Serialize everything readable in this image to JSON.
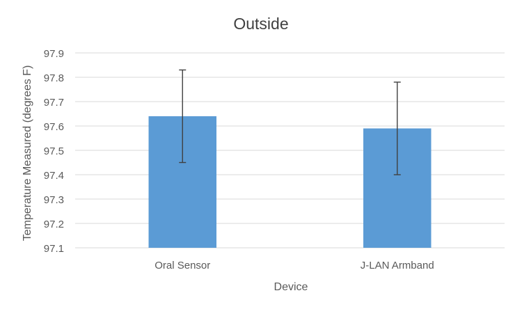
{
  "chart_data": {
    "type": "bar",
    "title": "Outside",
    "xlabel": "Device",
    "ylabel": "Temperature Measured (degrees F)",
    "categories": [
      "Oral Sensor",
      "J-LAN Armband"
    ],
    "values": [
      97.64,
      97.59
    ],
    "error_bars": [
      {
        "low": 97.45,
        "high": 97.83
      },
      {
        "low": 97.4,
        "high": 97.78
      }
    ],
    "ylim": [
      97.1,
      97.9
    ],
    "yticks": [
      "97.1",
      "97.2",
      "97.3",
      "97.4",
      "97.5",
      "97.6",
      "97.7",
      "97.8",
      "97.9"
    ],
    "grid": true,
    "legend": "none",
    "colors": {
      "bar": "#5b9bd5",
      "error_bar": "#404040",
      "grid": "#d9d9d9",
      "text": "#595959",
      "title": "#404040"
    }
  }
}
